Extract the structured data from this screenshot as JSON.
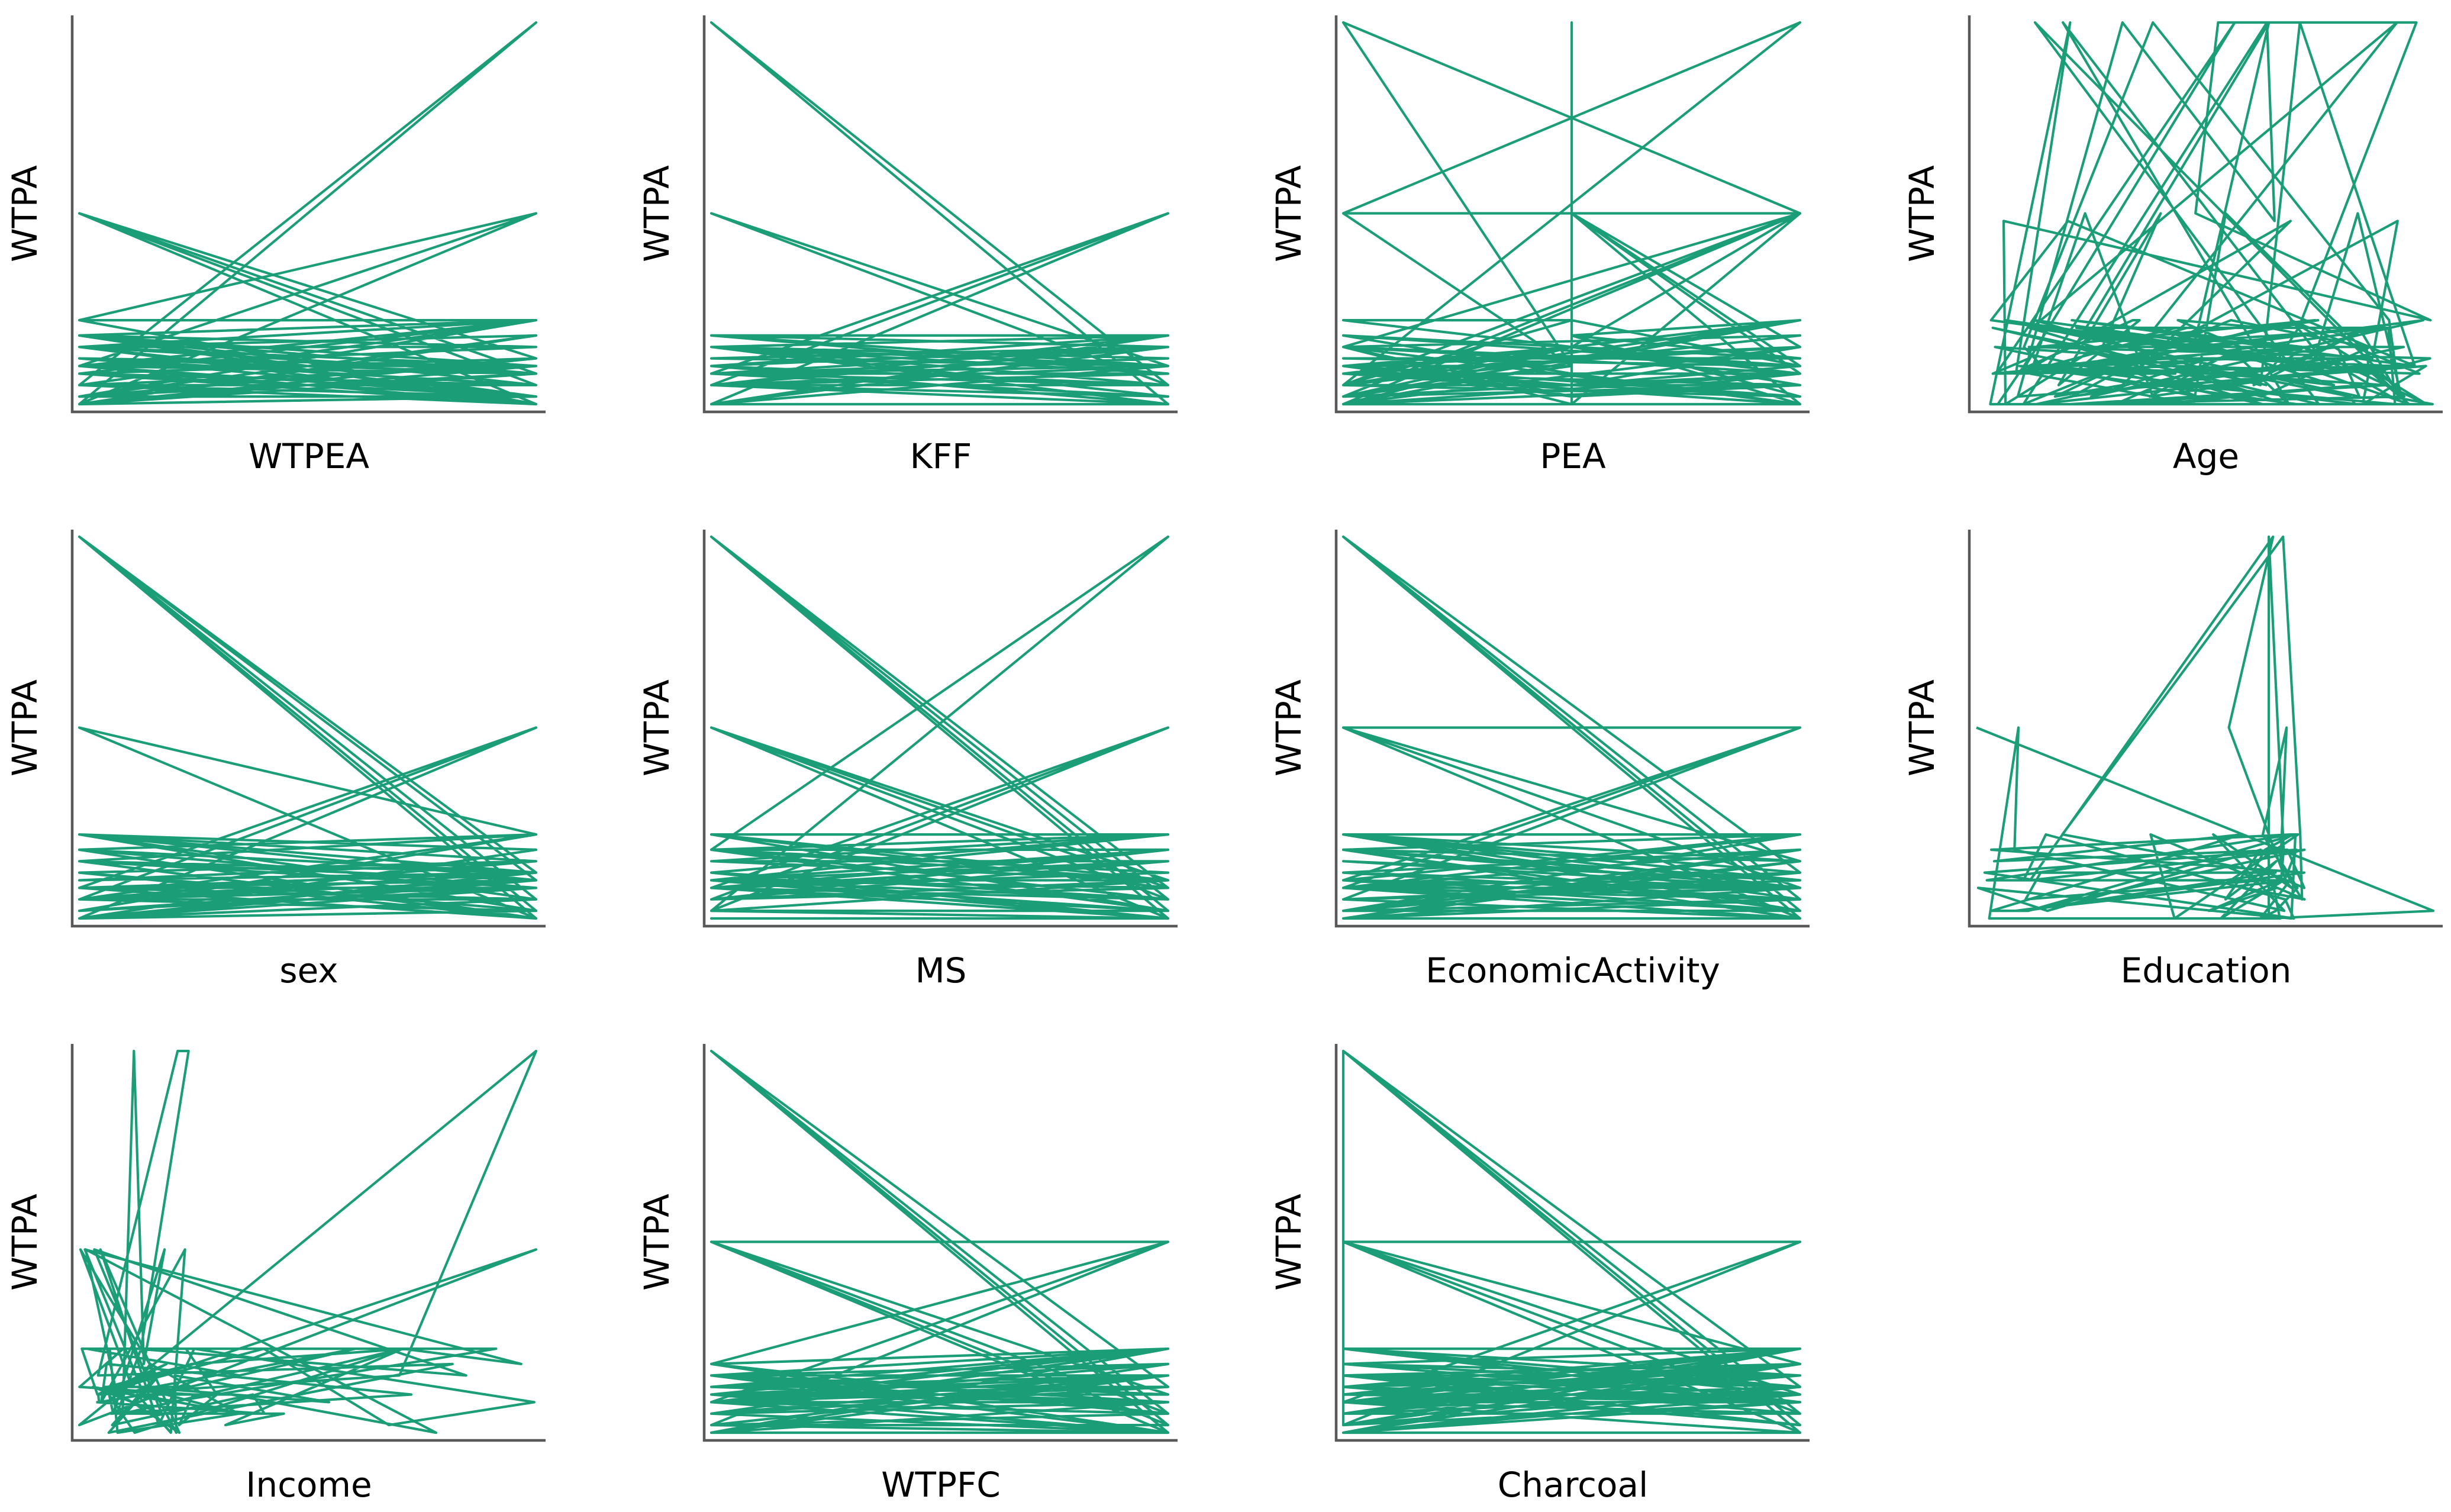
{
  "chart_data": [
    {
      "type": "line",
      "xlabel": "WTPEA",
      "ylabel": "WTPA",
      "kind": "two-level",
      "nlines": 60,
      "levels": [
        0,
        0.02,
        0.05,
        0.08,
        0.1,
        0.12,
        0.15,
        0.18,
        0.22,
        0.5
      ],
      "highOut": [
        [
          0.5,
          0.0
        ],
        [
          0.5,
          0.05
        ],
        [
          0.05,
          1.0
        ],
        [
          0.0,
          0.5
        ],
        [
          0.1,
          0.5
        ],
        [
          0.22,
          0.0
        ],
        [
          0.5,
          0.08
        ]
      ]
    },
    {
      "type": "line",
      "xlabel": "KFF",
      "ylabel": "WTPA",
      "kind": "two-level",
      "nlines": 45,
      "levels": [
        0,
        0.02,
        0.05,
        0.08,
        0.1,
        0.12,
        0.15,
        0.18,
        0.5
      ],
      "highOut": [
        [
          0.5,
          0.0
        ],
        [
          0.5,
          0.05
        ],
        [
          0.0,
          1.0
        ],
        [
          0.05,
          0.5
        ],
        [
          0.1,
          0.0
        ],
        [
          0.18,
          0.05
        ]
      ]
    },
    {
      "type": "line",
      "xlabel": "PEA",
      "ylabel": "WTPA",
      "kind": "pea",
      "nlines": 90,
      "levels": [
        0,
        0.02,
        0.05,
        0.08,
        0.1,
        0.12,
        0.15,
        0.18,
        0.22,
        0.5,
        1.0
      ]
    },
    {
      "type": "line",
      "xlabel": "Age",
      "ylabel": "WTPA",
      "kind": "age",
      "nlines": 160,
      "levels": [
        0,
        0.02,
        0.05,
        0.08,
        0.1,
        0.12,
        0.15,
        0.2,
        0.22,
        0.5,
        0.48,
        1.0
      ]
    },
    {
      "type": "line",
      "xlabel": "sex",
      "ylabel": "WTPA",
      "kind": "two-level",
      "nlines": 55,
      "levels": [
        0,
        0.02,
        0.05,
        0.08,
        0.1,
        0.12,
        0.15,
        0.18,
        0.22,
        0.5
      ],
      "highOut": [
        [
          0.5,
          0.0
        ],
        [
          0.5,
          0.08
        ],
        [
          0.05,
          1.0
        ],
        [
          0.02,
          1.0
        ],
        [
          0.0,
          0.5
        ],
        [
          0.22,
          0.02
        ],
        [
          0.1,
          1.0
        ],
        [
          0.12,
          0.05
        ]
      ]
    },
    {
      "type": "line",
      "xlabel": "MS",
      "ylabel": "WTPA",
      "kind": "two-level",
      "nlines": 55,
      "levels": [
        0,
        0.02,
        0.05,
        0.08,
        0.1,
        0.12,
        0.15,
        0.18,
        0.22,
        0.5
      ],
      "highOut": [
        [
          1.0,
          0.02
        ],
        [
          0.5,
          0.05
        ],
        [
          0.5,
          0.08
        ],
        [
          0.05,
          1.0
        ],
        [
          0.02,
          1.0
        ],
        [
          0.08,
          1.0
        ],
        [
          0.0,
          0.5
        ],
        [
          0.05,
          0.5
        ],
        [
          0.1,
          0.5
        ]
      ]
    },
    {
      "type": "line",
      "xlabel": "EconomicActivity",
      "ylabel": "WTPA",
      "kind": "two-level",
      "nlines": 55,
      "levels": [
        0,
        0.02,
        0.05,
        0.08,
        0.1,
        0.12,
        0.15,
        0.18,
        0.22,
        0.5
      ],
      "highOut": [
        [
          0.5,
          0.5
        ],
        [
          0.5,
          0.05
        ],
        [
          0.5,
          0.1
        ],
        [
          0.05,
          1.0
        ],
        [
          0.02,
          1.0
        ],
        [
          0.12,
          1.0
        ],
        [
          0.0,
          0.5
        ],
        [
          0.08,
          0.5
        ],
        [
          0.15,
          0.5
        ]
      ]
    },
    {
      "type": "line",
      "xlabel": "Education",
      "ylabel": "WTPA",
      "kind": "education",
      "nlines": 70,
      "levels": [
        0,
        0.02,
        0.05,
        0.08,
        0.1,
        0.12,
        0.15,
        0.18,
        0.22,
        0.5,
        1.0
      ]
    },
    {
      "type": "line",
      "xlabel": "Income",
      "ylabel": "WTPA",
      "kind": "income",
      "nlines": 90,
      "levels": [
        0,
        0.02,
        0.05,
        0.08,
        0.1,
        0.12,
        0.15,
        0.18,
        0.22,
        0.48,
        1.0
      ]
    },
    {
      "type": "line",
      "xlabel": "WTPFC",
      "ylabel": "WTPA",
      "kind": "two-level",
      "nlines": 55,
      "levels": [
        0,
        0.02,
        0.05,
        0.08,
        0.1,
        0.12,
        0.15,
        0.18,
        0.22,
        0.5
      ],
      "highOut": [
        [
          0.5,
          0.5
        ],
        [
          0.5,
          0.02
        ],
        [
          0.5,
          0.08
        ],
        [
          0.05,
          1.0
        ],
        [
          0.02,
          1.0
        ],
        [
          0.12,
          1.0
        ],
        [
          0.0,
          0.5
        ],
        [
          0.05,
          0.5
        ],
        [
          0.1,
          0.5
        ]
      ]
    },
    {
      "type": "line",
      "xlabel": "Charcoal",
      "ylabel": "WTPA",
      "kind": "charcoal",
      "nlines": 55,
      "levels": [
        0,
        0.02,
        0.05,
        0.08,
        0.1,
        0.12,
        0.15,
        0.18,
        0.22,
        0.5
      ],
      "highOut": [
        [
          0.5,
          0.5
        ],
        [
          0.5,
          0.02
        ],
        [
          0.5,
          0.08
        ],
        [
          0.05,
          1.0
        ],
        [
          0.02,
          1.0
        ],
        [
          0.12,
          1.0
        ],
        [
          0.0,
          0.5
        ],
        [
          0.05,
          0.5
        ],
        [
          0.1,
          0.5
        ]
      ]
    }
  ]
}
